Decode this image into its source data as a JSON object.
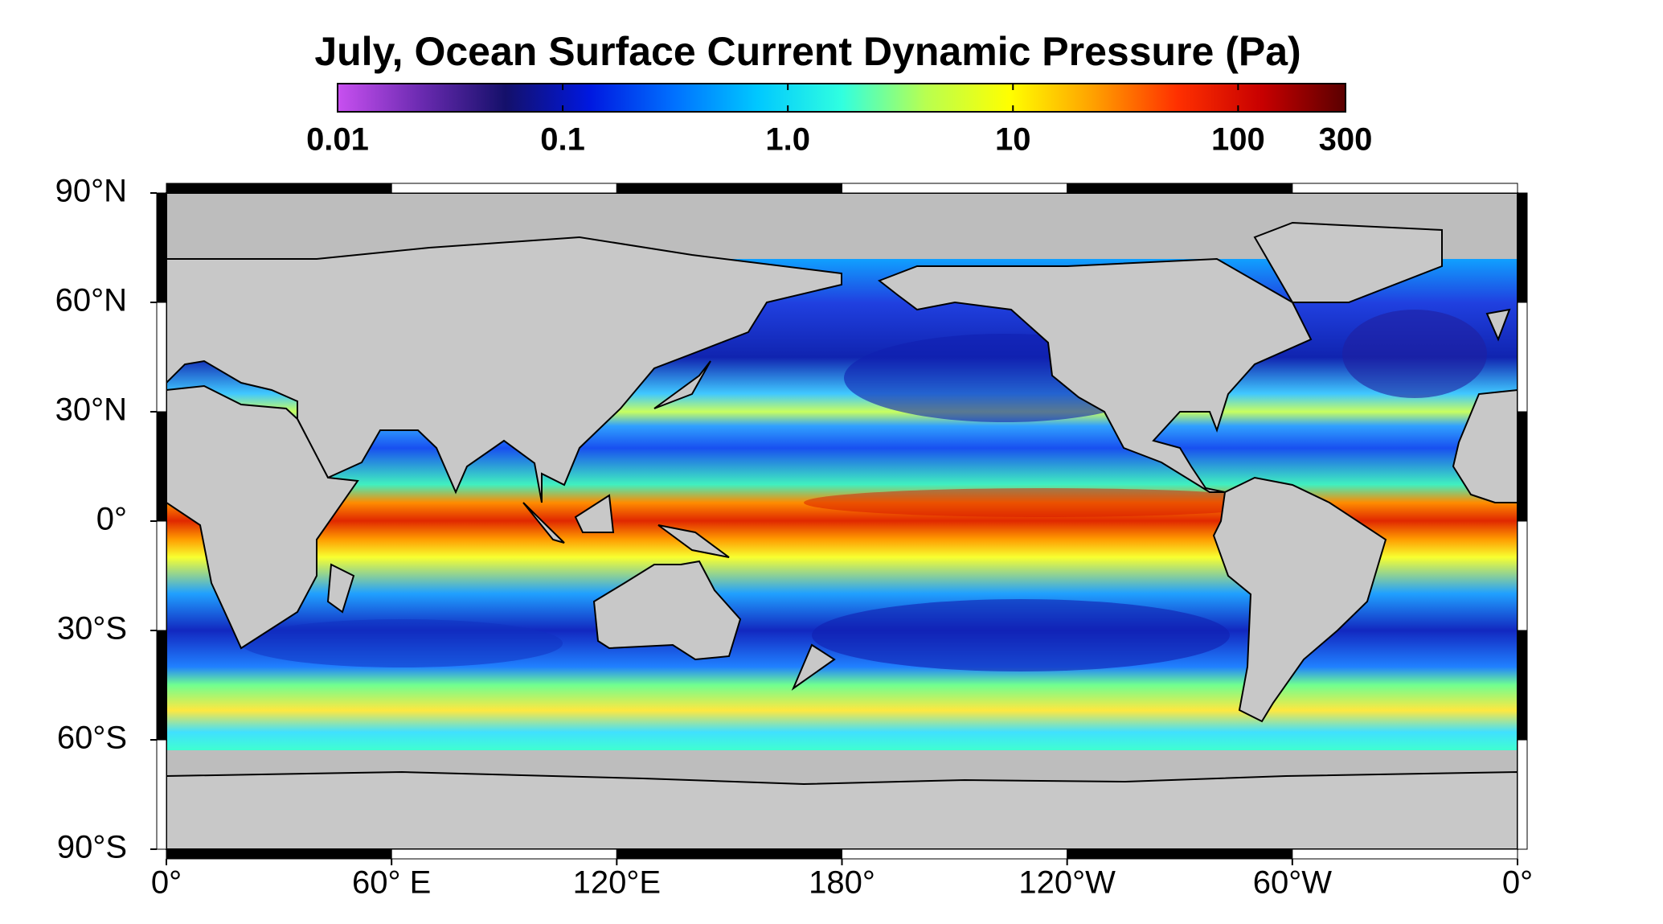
{
  "title": "July, Ocean Surface Current Dynamic Pressure (Pa)",
  "colorbar": {
    "scale": "log",
    "lim": [
      0.01,
      300
    ],
    "ticks": [
      0.01,
      0.1,
      {
        "value": 1,
        "label": "1.0"
      },
      10,
      100,
      300
    ],
    "colors": [
      "#c850f0",
      "#6a2ab0",
      "#14106a",
      "#0018e0",
      "#0070ff",
      "#00c8ff",
      "#30ffe0",
      "#b8ff50",
      "#ffff00",
      "#ffa000",
      "#ff3000",
      "#c80000",
      "#5a0000"
    ]
  },
  "map": {
    "lat_ticks": [
      {
        "value": 90,
        "label": "90°N"
      },
      {
        "value": 60,
        "label": "60°N"
      },
      {
        "value": 30,
        "label": "30°N"
      },
      {
        "value": 0,
        "label": "0°"
      },
      {
        "value": -30,
        "label": "30°S"
      },
      {
        "value": -60,
        "label": "60°S"
      },
      {
        "value": -90,
        "label": "90°S"
      }
    ],
    "lon_ticks": [
      {
        "value": 0,
        "label": "0°"
      },
      {
        "value": 60,
        "label": "60° E"
      },
      {
        "value": 120,
        "label": "120°E"
      },
      {
        "value": 180,
        "label": "180°"
      },
      {
        "value": 240,
        "label": "120°W"
      },
      {
        "value": 300,
        "label": "60°W"
      },
      {
        "value": 360,
        "label": "0°"
      }
    ]
  }
}
